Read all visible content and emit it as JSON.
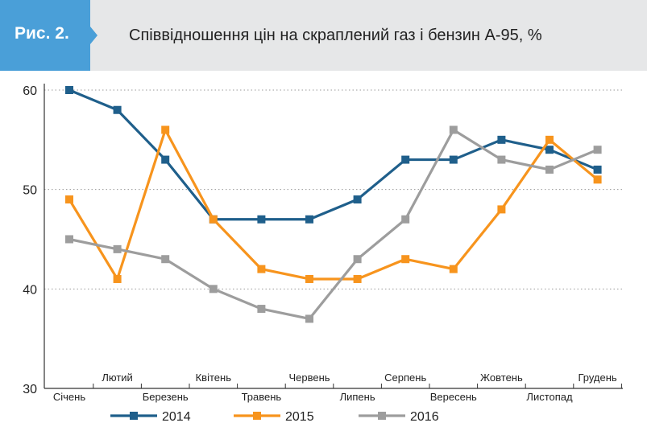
{
  "header": {
    "fig_label": "Рис. 2.",
    "title": "Співвідношення цін на скраплений газ і бензин А-95, %",
    "tag_color": "#4a9fd8",
    "bg_color": "#e6e7e8"
  },
  "chart_data": {
    "type": "line",
    "categories": [
      "Січень",
      "Лютий",
      "Березень",
      "Квітень",
      "Травень",
      "Червень",
      "Липень",
      "Серпень",
      "Вересень",
      "Жовтень",
      "Листопад",
      "Грудень"
    ],
    "ylim": [
      30,
      60
    ],
    "yticks": [
      30,
      40,
      50,
      60
    ],
    "grid": true,
    "legend_position": "bottom",
    "series": [
      {
        "name": "2014",
        "color": "#1f5f8b",
        "values": [
          60,
          58,
          53,
          47,
          47,
          47,
          49,
          53,
          53,
          55,
          54,
          52
        ]
      },
      {
        "name": "2015",
        "color": "#f7941d",
        "values": [
          49,
          41,
          56,
          47,
          42,
          41,
          41,
          43,
          42,
          48,
          55,
          51
        ]
      },
      {
        "name": "2016",
        "color": "#9d9d9d",
        "values": [
          45,
          44,
          43,
          40,
          38,
          37,
          43,
          47,
          56,
          53,
          52,
          54
        ]
      }
    ]
  }
}
